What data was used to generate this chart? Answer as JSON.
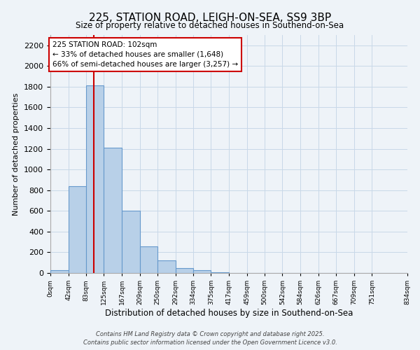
{
  "title": "225, STATION ROAD, LEIGH-ON-SEA, SS9 3BP",
  "subtitle": "Size of property relative to detached houses in Southend-on-Sea",
  "xlabel": "Distribution of detached houses by size in Southend-on-Sea",
  "ylabel": "Number of detached properties",
  "bar_values": [
    25,
    840,
    1810,
    1210,
    600,
    255,
    120,
    45,
    25,
    5,
    2,
    0,
    0,
    0,
    0,
    0,
    0,
    0,
    0
  ],
  "bin_edges": [
    0,
    42,
    83,
    125,
    167,
    209,
    250,
    292,
    334,
    375,
    417,
    459,
    500,
    542,
    584,
    626,
    667,
    709,
    751,
    834
  ],
  "tick_labels": [
    "0sqm",
    "42sqm",
    "83sqm",
    "125sqm",
    "167sqm",
    "209sqm",
    "250sqm",
    "292sqm",
    "334sqm",
    "375sqm",
    "417sqm",
    "459sqm",
    "500sqm",
    "542sqm",
    "584sqm",
    "626sqm",
    "667sqm",
    "709sqm",
    "751sqm",
    "834sqm"
  ],
  "bar_color": "#b8d0e8",
  "bar_edge_color": "#6699cc",
  "redline_x": 102,
  "ylim": [
    0,
    2300
  ],
  "yticks": [
    0,
    200,
    400,
    600,
    800,
    1000,
    1200,
    1400,
    1600,
    1800,
    2000,
    2200
  ],
  "annotation_text": "225 STATION ROAD: 102sqm\n← 33% of detached houses are smaller (1,648)\n66% of semi-detached houses are larger (3,257) →",
  "annotation_box_color": "#ffffff",
  "annotation_box_edge": "#cc0000",
  "grid_color": "#c8d8e8",
  "background_color": "#eef3f8",
  "footnote1": "Contains HM Land Registry data © Crown copyright and database right 2025.",
  "footnote2": "Contains public sector information licensed under the Open Government Licence v3.0."
}
